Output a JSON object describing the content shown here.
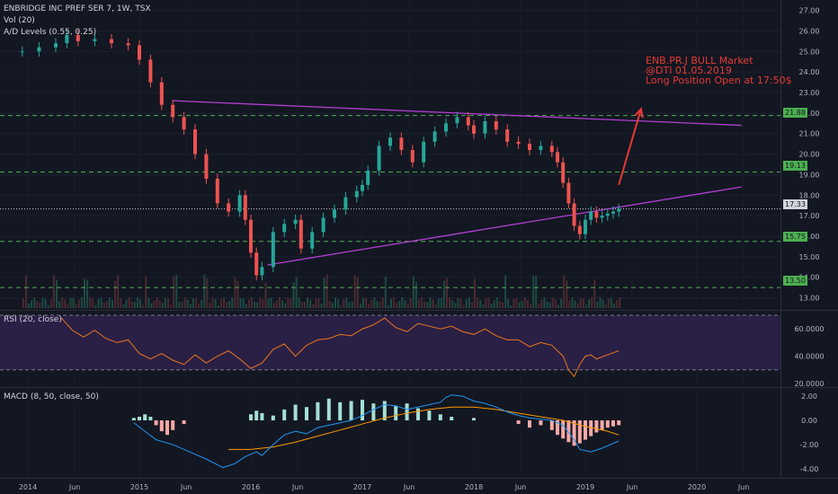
{
  "header": {
    "symbol": "ENBRIDGE INC PREF SER 7, 1W, TSX",
    "vol_label": "Vol (20)",
    "ad_label": "A/D Levels (0.55, 0.25)"
  },
  "annotation": {
    "lines": [
      "ENB.PR.J BULL Market",
      "@DTI 01.05.2019",
      "Long Position Open at 17:50$"
    ]
  },
  "panes": {
    "rsi_label": "RSI (20, close)",
    "macd_label": "MACD (8, 50, close, 50)"
  },
  "colors": {
    "background": "#131722",
    "up": "#26a69a",
    "down": "#ef5350",
    "trendline": "#b33fd3",
    "level": "#4caf50",
    "rsi": "#e9781c",
    "macd": "#2196f3",
    "signal": "#ff9800",
    "annotation": "#e53935"
  },
  "chart_data": [
    {
      "type": "candlestick",
      "title": "ENBRIDGE INC PREF SER 7, 1W, TSX",
      "x_ticks": [
        "2014",
        "Jun",
        "2015",
        "Jun",
        "2016",
        "Jun",
        "2017",
        "Jun",
        "2018",
        "Jun",
        "2019",
        "Jun",
        "2020",
        "Jun"
      ],
      "y_ticks": [
        "27.00",
        "26.00",
        "25.00",
        "24.00",
        "23.00",
        "22.00",
        "21.00",
        "20.00",
        "19.00",
        "18.00",
        "17.00",
        "16.00",
        "15.00",
        "14.00",
        "13.00"
      ],
      "ylim": [
        12.5,
        27.2
      ],
      "xlim": [
        2013.75,
        2020.75
      ],
      "last_price": "17.33",
      "levels": [
        "21.88",
        "19.13",
        "15.75",
        "13.50"
      ],
      "trendlines": [
        {
          "from": [
            2015.3,
            22.6
          ],
          "to": [
            2020.4,
            21.4
          ]
        },
        {
          "from": [
            2016.15,
            14.6
          ],
          "to": [
            2020.4,
            18.4
          ]
        }
      ],
      "projection_arrow": {
        "from": [
          2019.3,
          18.5
        ],
        "to": [
          2019.5,
          22.2
        ]
      },
      "price": [
        [
          2013.95,
          25.0
        ],
        [
          2014.1,
          25.2
        ],
        [
          2014.25,
          25.4
        ],
        [
          2014.35,
          25.8
        ],
        [
          2014.45,
          25.5
        ],
        [
          2014.6,
          25.6
        ],
        [
          2014.75,
          25.4
        ],
        [
          2014.9,
          25.3
        ],
        [
          2015.0,
          24.6
        ],
        [
          2015.1,
          23.5
        ],
        [
          2015.2,
          22.4
        ],
        [
          2015.3,
          21.8
        ],
        [
          2015.4,
          21.2
        ],
        [
          2015.5,
          20.0
        ],
        [
          2015.6,
          18.8
        ],
        [
          2015.7,
          17.6
        ],
        [
          2015.8,
          17.2
        ],
        [
          2015.9,
          18.0
        ],
        [
          2015.95,
          16.8
        ],
        [
          2016.0,
          15.2
        ],
        [
          2016.05,
          14.1
        ],
        [
          2016.1,
          14.5
        ],
        [
          2016.2,
          16.2
        ],
        [
          2016.3,
          16.6
        ],
        [
          2016.4,
          16.8
        ],
        [
          2016.45,
          15.4
        ],
        [
          2016.55,
          16.2
        ],
        [
          2016.65,
          16.9
        ],
        [
          2016.75,
          17.3
        ],
        [
          2016.85,
          17.9
        ],
        [
          2016.95,
          18.2
        ],
        [
          2017.0,
          18.5
        ],
        [
          2017.05,
          19.2
        ],
        [
          2017.15,
          20.4
        ],
        [
          2017.25,
          20.8
        ],
        [
          2017.35,
          20.2
        ],
        [
          2017.45,
          19.6
        ],
        [
          2017.55,
          20.6
        ],
        [
          2017.65,
          21.1
        ],
        [
          2017.75,
          21.5
        ],
        [
          2017.85,
          21.8
        ],
        [
          2017.95,
          21.4
        ],
        [
          2018.0,
          21.0
        ],
        [
          2018.1,
          21.6
        ],
        [
          2018.2,
          21.2
        ],
        [
          2018.3,
          20.6
        ],
        [
          2018.4,
          20.5
        ],
        [
          2018.5,
          20.2
        ],
        [
          2018.6,
          20.4
        ],
        [
          2018.7,
          20.1
        ],
        [
          2018.75,
          19.6
        ],
        [
          2018.8,
          18.6
        ],
        [
          2018.85,
          17.6
        ],
        [
          2018.9,
          16.5
        ],
        [
          2018.95,
          16.1
        ],
        [
          2019.0,
          16.8
        ],
        [
          2019.05,
          17.2
        ],
        [
          2019.1,
          16.9
        ],
        [
          2019.15,
          17.0
        ],
        [
          2019.2,
          17.1
        ],
        [
          2019.25,
          17.2
        ],
        [
          2019.3,
          17.33
        ]
      ]
    },
    {
      "type": "line",
      "title": "RSI (20, close)",
      "y_ticks": [
        "60.0000",
        "40.0000",
        "20.0000"
      ],
      "ylim": [
        18,
        72
      ],
      "band": [
        30,
        70
      ],
      "values": [
        [
          2014.3,
          68
        ],
        [
          2014.4,
          59
        ],
        [
          2014.5,
          54
        ],
        [
          2014.6,
          59
        ],
        [
          2014.7,
          53
        ],
        [
          2014.8,
          50
        ],
        [
          2014.9,
          52
        ],
        [
          2015.0,
          42
        ],
        [
          2015.1,
          38
        ],
        [
          2015.2,
          42
        ],
        [
          2015.3,
          37
        ],
        [
          2015.4,
          34
        ],
        [
          2015.5,
          41
        ],
        [
          2015.6,
          35
        ],
        [
          2015.7,
          40
        ],
        [
          2015.8,
          44
        ],
        [
          2015.9,
          38
        ],
        [
          2016.0,
          31
        ],
        [
          2016.1,
          35
        ],
        [
          2016.2,
          45
        ],
        [
          2016.3,
          49
        ],
        [
          2016.4,
          40
        ],
        [
          2016.5,
          48
        ],
        [
          2016.6,
          52
        ],
        [
          2016.7,
          53
        ],
        [
          2016.8,
          56
        ],
        [
          2016.9,
          55
        ],
        [
          2017.0,
          60
        ],
        [
          2017.1,
          63
        ],
        [
          2017.2,
          68
        ],
        [
          2017.3,
          61
        ],
        [
          2017.4,
          58
        ],
        [
          2017.5,
          64
        ],
        [
          2017.6,
          62
        ],
        [
          2017.7,
          60
        ],
        [
          2017.8,
          62
        ],
        [
          2017.9,
          58
        ],
        [
          2018.0,
          56
        ],
        [
          2018.1,
          60
        ],
        [
          2018.2,
          55
        ],
        [
          2018.3,
          52
        ],
        [
          2018.4,
          52
        ],
        [
          2018.5,
          47
        ],
        [
          2018.6,
          50
        ],
        [
          2018.7,
          48
        ],
        [
          2018.8,
          40
        ],
        [
          2018.85,
          30
        ],
        [
          2018.9,
          25
        ],
        [
          2018.95,
          34
        ],
        [
          2019.0,
          40
        ],
        [
          2019.05,
          41
        ],
        [
          2019.1,
          38
        ],
        [
          2019.2,
          41
        ],
        [
          2019.3,
          44
        ]
      ]
    },
    {
      "type": "line",
      "title": "MACD (8, 50, close, 50)",
      "y_ticks": [
        "2.00",
        "0.00",
        "-2.00",
        "-4.00"
      ],
      "ylim": [
        -4.6,
        2.6
      ],
      "series": [
        {
          "values": [
            [
              2014.95,
              -0.2
            ],
            [
              2015.05,
              -0.9
            ],
            [
              2015.15,
              -1.6
            ],
            [
              2015.3,
              -2.0
            ],
            [
              2015.45,
              -2.6
            ],
            [
              2015.6,
              -3.2
            ],
            [
              2015.75,
              -3.9
            ],
            [
              2015.85,
              -3.6
            ],
            [
              2015.95,
              -3.0
            ],
            [
              2016.05,
              -2.6
            ],
            [
              2016.1,
              -2.9
            ],
            [
              2016.2,
              -2.0
            ],
            [
              2016.3,
              -1.2
            ],
            [
              2016.4,
              -0.9
            ],
            [
              2016.5,
              -1.1
            ],
            [
              2016.6,
              -0.6
            ],
            [
              2016.7,
              -0.4
            ],
            [
              2016.8,
              -0.2
            ],
            [
              2016.9,
              0.0
            ],
            [
              2017.0,
              0.4
            ],
            [
              2017.1,
              0.9
            ],
            [
              2017.2,
              1.3
            ],
            [
              2017.3,
              1.2
            ],
            [
              2017.4,
              0.9
            ],
            [
              2017.5,
              1.1
            ],
            [
              2017.6,
              1.3
            ],
            [
              2017.7,
              1.5
            ],
            [
              2017.75,
              1.9
            ],
            [
              2017.8,
              2.1
            ],
            [
              2017.9,
              2.0
            ],
            [
              2018.0,
              1.6
            ],
            [
              2018.1,
              1.4
            ],
            [
              2018.2,
              1.1
            ],
            [
              2018.3,
              0.7
            ],
            [
              2018.4,
              0.4
            ],
            [
              2018.5,
              0.2
            ],
            [
              2018.6,
              0.1
            ],
            [
              2018.7,
              0.0
            ],
            [
              2018.8,
              -0.4
            ],
            [
              2018.9,
              -1.6
            ],
            [
              2018.95,
              -2.4
            ],
            [
              2019.05,
              -2.6
            ],
            [
              2019.15,
              -2.3
            ],
            [
              2019.25,
              -1.9
            ],
            [
              2019.3,
              -1.7
            ]
          ]
        },
        {
          "values": [
            [
              2015.8,
              -2.4
            ],
            [
              2016.0,
              -2.4
            ],
            [
              2016.2,
              -2.2
            ],
            [
              2016.4,
              -1.8
            ],
            [
              2016.6,
              -1.3
            ],
            [
              2016.8,
              -0.8
            ],
            [
              2017.0,
              -0.3
            ],
            [
              2017.2,
              0.2
            ],
            [
              2017.4,
              0.6
            ],
            [
              2017.6,
              0.9
            ],
            [
              2017.8,
              1.1
            ],
            [
              2018.0,
              1.1
            ],
            [
              2018.2,
              0.9
            ],
            [
              2018.4,
              0.6
            ],
            [
              2018.6,
              0.3
            ],
            [
              2018.8,
              0.0
            ],
            [
              2019.0,
              -0.5
            ],
            [
              2019.2,
              -0.9
            ],
            [
              2019.3,
              -1.2
            ]
          ]
        },
        {
          "type": "histogram",
          "values": [
            [
              2014.95,
              0.2
            ],
            [
              2015.0,
              0.3
            ],
            [
              2015.05,
              0.5
            ],
            [
              2015.1,
              0.3
            ],
            [
              2015.15,
              -0.4
            ],
            [
              2015.2,
              -0.9
            ],
            [
              2015.25,
              -1.2
            ],
            [
              2015.3,
              -0.8
            ],
            [
              2015.4,
              -0.3
            ],
            [
              2016.0,
              0.5
            ],
            [
              2016.05,
              0.8
            ],
            [
              2016.1,
              0.6
            ],
            [
              2016.2,
              0.4
            ],
            [
              2016.3,
              0.9
            ],
            [
              2016.4,
              1.3
            ],
            [
              2016.5,
              1.1
            ],
            [
              2016.6,
              1.5
            ],
            [
              2016.7,
              1.8
            ],
            [
              2016.8,
              1.5
            ],
            [
              2016.9,
              1.6
            ],
            [
              2017.0,
              1.7
            ],
            [
              2017.1,
              1.4
            ],
            [
              2017.2,
              1.6
            ],
            [
              2017.3,
              1.2
            ],
            [
              2017.4,
              1.4
            ],
            [
              2017.5,
              1.0
            ],
            [
              2017.6,
              0.8
            ],
            [
              2017.7,
              0.5
            ],
            [
              2017.8,
              0.3
            ],
            [
              2018.0,
              0.2
            ],
            [
              2018.4,
              -0.3
            ],
            [
              2018.5,
              -0.6
            ],
            [
              2018.6,
              -0.4
            ],
            [
              2018.7,
              -0.8
            ],
            [
              2018.75,
              -1.2
            ],
            [
              2018.8,
              -1.5
            ],
            [
              2018.85,
              -1.8
            ],
            [
              2018.9,
              -2.1
            ],
            [
              2018.95,
              -1.9
            ],
            [
              2019.0,
              -1.6
            ],
            [
              2019.05,
              -1.3
            ],
            [
              2019.1,
              -1.0
            ],
            [
              2019.15,
              -0.8
            ],
            [
              2019.2,
              -0.6
            ],
            [
              2019.25,
              -0.5
            ],
            [
              2019.3,
              -0.4
            ]
          ]
        }
      ]
    }
  ]
}
